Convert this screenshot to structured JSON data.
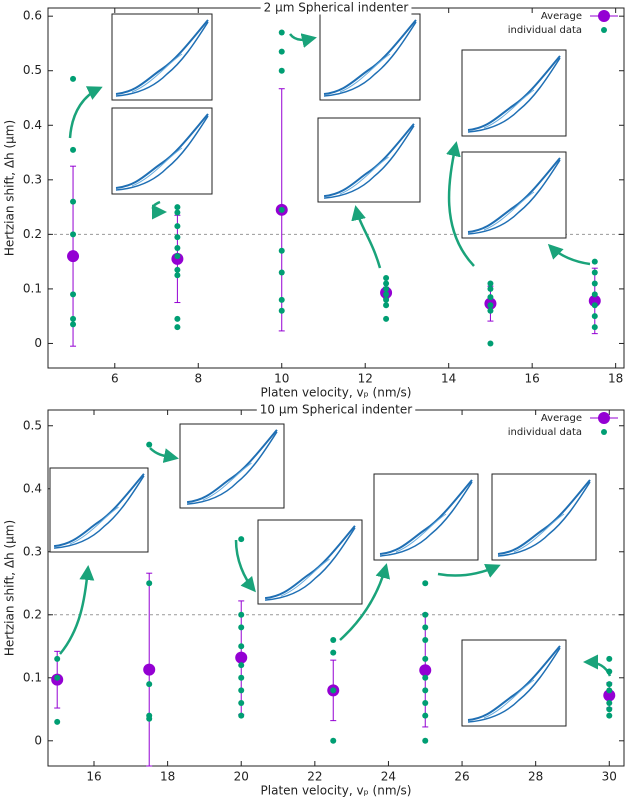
{
  "chart_data": [
    {
      "type": "scatter",
      "title": "2 μm Spherical indenter",
      "x_label": "Platen velocity, vₚ (nm/s)",
      "y_label": "Hertzian shift, Δh (μm)",
      "xlim": [
        4.4,
        18.2
      ],
      "xticks": [
        6,
        8,
        10,
        12,
        14,
        16,
        18
      ],
      "ylim": [
        -0.045,
        0.615
      ],
      "yticks": [
        0,
        0.1,
        0.2,
        0.3,
        0.4,
        0.5,
        0.6
      ],
      "hline": 0.2,
      "legend": "top-right",
      "series": [
        {
          "name": "Average",
          "color": "#9400d3",
          "x": [
            5,
            7.5,
            10,
            12.5,
            15,
            17.5
          ],
          "values": [
            0.16,
            0.155,
            0.245,
            0.093,
            0.073,
            0.078
          ],
          "errors": [
            0.165,
            0.08,
            0.222,
            0.01,
            0.032,
            0.06
          ]
        },
        {
          "name": "individual data",
          "color": "#009e73",
          "x": [
            5,
            5,
            5,
            5,
            5,
            5,
            5,
            7.5,
            7.5,
            7.5,
            7.5,
            7.5,
            7.5,
            7.5,
            7.5,
            7.5,
            7.5,
            10,
            10,
            10,
            10,
            10,
            10,
            10,
            10,
            12.5,
            12.5,
            12.5,
            12.5,
            12.5,
            12.5,
            12.5,
            15,
            15,
            15,
            15,
            15,
            15,
            17.5,
            17.5,
            17.5,
            17.5,
            17.5,
            17.5,
            17.5
          ],
          "values": [
            0.485,
            0.355,
            0.26,
            0.2,
            0.09,
            0.045,
            0.035,
            0.25,
            0.24,
            0.215,
            0.195,
            0.175,
            0.16,
            0.135,
            0.125,
            0.045,
            0.03,
            0.57,
            0.535,
            0.5,
            0.245,
            0.17,
            0.13,
            0.08,
            0.06,
            0.12,
            0.11,
            0.1,
            0.09,
            0.08,
            0.07,
            0.045,
            0.11,
            0.1,
            0.085,
            0.07,
            0.06,
            0.0,
            0.15,
            0.13,
            0.11,
            0.09,
            0.07,
            0.05,
            0.03
          ]
        }
      ]
    },
    {
      "type": "scatter",
      "title": "10 μm Spherical indenter",
      "x_label": "Platen velocity, vₚ (nm/s)",
      "y_label": "Hertzian shift, Δh (μm)",
      "xlim": [
        14.75,
        30.4
      ],
      "xticks": [
        16,
        18,
        20,
        22,
        24,
        26,
        28,
        30
      ],
      "ylim": [
        -0.04,
        0.525
      ],
      "yticks": [
        0,
        0.1,
        0.2,
        0.3,
        0.4,
        0.5
      ],
      "hline": 0.2,
      "legend": "top-right",
      "series": [
        {
          "name": "Average",
          "color": "#9400d3",
          "x": [
            15,
            17.5,
            20,
            22.5,
            25,
            30
          ],
          "values": [
            0.097,
            0.113,
            0.132,
            0.08,
            0.112,
            0.072
          ],
          "errors": [
            0.045,
            0.153,
            0.09,
            0.048,
            0.09,
            0.02
          ]
        },
        {
          "name": "individual data",
          "color": "#009e73",
          "x": [
            15,
            15,
            15,
            17.5,
            17.5,
            17.5,
            17.5,
            17.5,
            20,
            20,
            20,
            20,
            20,
            20,
            20,
            20,
            20,
            22.5,
            22.5,
            22.5,
            22.5,
            25,
            25,
            25,
            25,
            25,
            25,
            25,
            25,
            25,
            25,
            30,
            30,
            30,
            30,
            30,
            30,
            30
          ],
          "values": [
            0.13,
            0.1,
            0.03,
            0.47,
            0.25,
            0.09,
            0.04,
            0.035,
            0.32,
            0.2,
            0.18,
            0.15,
            0.12,
            0.1,
            0.08,
            0.06,
            0.04,
            0.16,
            0.14,
            0.08,
            0.0,
            0.25,
            0.2,
            0.18,
            0.16,
            0.13,
            0.1,
            0.08,
            0.06,
            0.04,
            0.0,
            0.13,
            0.11,
            0.09,
            0.08,
            0.06,
            0.05,
            0.04
          ]
        }
      ]
    }
  ]
}
